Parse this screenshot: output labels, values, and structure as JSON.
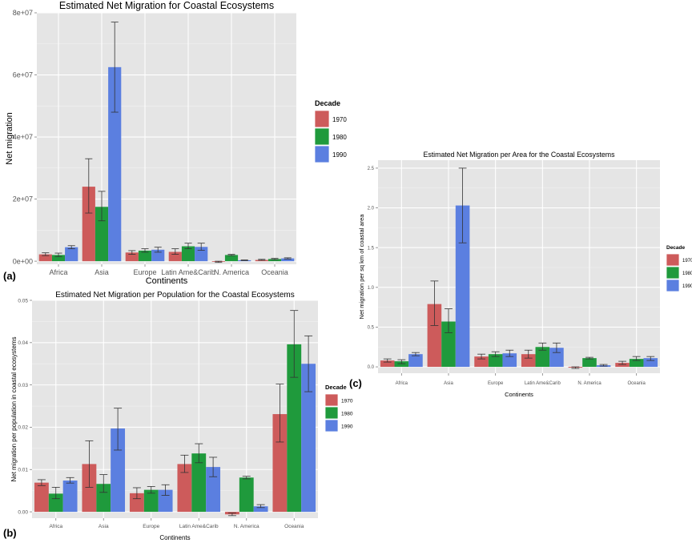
{
  "legend": {
    "title": "Decade",
    "labels": [
      "1970",
      "1980",
      "1990"
    ]
  },
  "colors": {
    "s1970": "#cd5b5b",
    "s1980": "#1f9a3c",
    "s1990": "#5b7fe0",
    "panel": "#e5e5e5",
    "grid": "#ffffff",
    "error": "#333333"
  },
  "panel_labels": {
    "a": "(a)",
    "b": "(b)",
    "c": "(c)"
  },
  "chart_data": [
    {
      "id": "a",
      "type": "bar",
      "title": "Estimated Net Migration for Coastal Ecosystems",
      "xlabel": "Continents",
      "ylabel": "Net migration",
      "ylim": [
        -1000000,
        80000000
      ],
      "yticks": [
        0,
        20000000,
        40000000,
        60000000,
        80000000
      ],
      "ytick_labels": [
        "0e+00",
        "2e+07",
        "4e+07",
        "6e+07",
        "8e+07"
      ],
      "categories": [
        "Africa",
        "Asia",
        "Europe",
        "Latin Ame&Carib",
        "N. America",
        "Oceania"
      ],
      "series": [
        {
          "name": "1970",
          "values": [
            2200000,
            24000000,
            2800000,
            3000000,
            -200000,
            400000
          ],
          "err_low": [
            1800000,
            15500000,
            2200000,
            2200000,
            -400000,
            300000
          ],
          "err_high": [
            2700000,
            33000000,
            3400000,
            4000000,
            0,
            600000
          ]
        },
        {
          "name": "1980",
          "values": [
            2000000,
            17500000,
            3400000,
            4800000,
            2000000,
            700000
          ],
          "err_low": [
            1500000,
            13000000,
            2900000,
            4000000,
            1800000,
            500000
          ],
          "err_high": [
            2600000,
            22500000,
            4000000,
            5800000,
            2200000,
            900000
          ]
        },
        {
          "name": "1990",
          "values": [
            4500000,
            62500000,
            3700000,
            4600000,
            300000,
            900000
          ],
          "err_low": [
            4000000,
            48000000,
            2900000,
            3500000,
            200000,
            700000
          ],
          "err_high": [
            5000000,
            77000000,
            4500000,
            5800000,
            400000,
            1100000
          ]
        }
      ]
    },
    {
      "id": "b",
      "type": "bar",
      "title": "Estimated Net Migration per Population for the Coastal Ecosystems",
      "xlabel": "Continents",
      "ylabel": "Net migration per population in coastal ecosystems",
      "ylim": [
        -0.0015,
        0.05
      ],
      "yticks": [
        0,
        0.01,
        0.02,
        0.03,
        0.04,
        0.05
      ],
      "ytick_labels": [
        "0.00",
        "0.01",
        "0.02",
        "0.03",
        "0.04",
        "0.05"
      ],
      "categories": [
        "Africa",
        "Asia",
        "Europe",
        "Latin Ame&Carib",
        "N. America",
        "Oceania"
      ],
      "series": [
        {
          "name": "1970",
          "values": [
            0.0069,
            0.0113,
            0.0044,
            0.0113,
            -0.0006,
            0.0231
          ],
          "err_low": [
            0.0062,
            0.0058,
            0.0031,
            0.0093,
            -0.0009,
            0.0165
          ],
          "err_high": [
            0.0076,
            0.0168,
            0.0057,
            0.0134,
            -0.0003,
            0.0302
          ]
        },
        {
          "name": "1980",
          "values": [
            0.0043,
            0.0066,
            0.0052,
            0.0138,
            0.0081,
            0.0396
          ],
          "err_low": [
            0.0031,
            0.0046,
            0.0044,
            0.0116,
            0.0078,
            0.0318
          ],
          "err_high": [
            0.0058,
            0.0088,
            0.006,
            0.0161,
            0.0084,
            0.0476
          ]
        },
        {
          "name": "1990",
          "values": [
            0.0074,
            0.0197,
            0.0052,
            0.0106,
            0.0013,
            0.035
          ],
          "err_low": [
            0.0068,
            0.0146,
            0.0039,
            0.0083,
            0.001,
            0.0284
          ],
          "err_high": [
            0.0081,
            0.0245,
            0.0064,
            0.0129,
            0.0017,
            0.0416
          ]
        }
      ]
    },
    {
      "id": "c",
      "type": "bar",
      "title": "Estimated Net Migration per Area for the Coastal Ecosystems",
      "xlabel": "Continents",
      "ylabel": "Net migration per sq km of coastal area",
      "ylim": [
        -0.08,
        2.6
      ],
      "yticks": [
        0,
        0.5,
        1.0,
        1.5,
        2.0,
        2.5
      ],
      "ytick_labels": [
        "0.0",
        "0.5",
        "1.0",
        "1.5",
        "2.0",
        "2.5"
      ],
      "categories": [
        "Africa",
        "Asia",
        "Europe",
        "Latin Ame&Carib",
        "N. America",
        "Oceania"
      ],
      "series": [
        {
          "name": "1970",
          "values": [
            0.08,
            0.79,
            0.13,
            0.16,
            -0.01,
            0.05
          ],
          "err_low": [
            0.06,
            0.52,
            0.1,
            0.11,
            -0.02,
            0.03
          ],
          "err_high": [
            0.1,
            1.08,
            0.16,
            0.21,
            0,
            0.07
          ]
        },
        {
          "name": "1980",
          "values": [
            0.07,
            0.57,
            0.16,
            0.25,
            0.11,
            0.1
          ],
          "err_low": [
            0.04,
            0.43,
            0.13,
            0.21,
            0.1,
            0.08
          ],
          "err_high": [
            0.09,
            0.73,
            0.19,
            0.3,
            0.12,
            0.13
          ]
        },
        {
          "name": "1990",
          "values": [
            0.16,
            2.03,
            0.17,
            0.24,
            0.02,
            0.11
          ],
          "err_low": [
            0.14,
            1.56,
            0.13,
            0.18,
            0.01,
            0.08
          ],
          "err_high": [
            0.18,
            2.5,
            0.21,
            0.3,
            0.03,
            0.13
          ]
        }
      ]
    }
  ]
}
